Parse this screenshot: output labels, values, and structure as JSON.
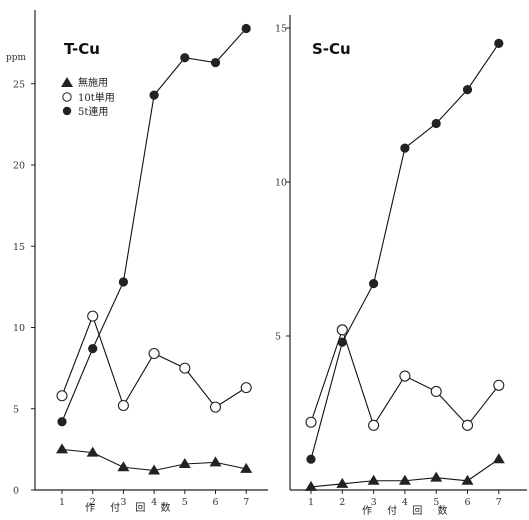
{
  "chart_data": [
    {
      "type": "line",
      "title": "T-Cu",
      "ylabel": "ppm",
      "xlabel": "作 付 回 数",
      "categories": [
        "1",
        "2",
        "3",
        "4",
        "5",
        "6",
        "7"
      ],
      "yticks": [
        "0",
        "5",
        "10",
        "15",
        "20",
        "25"
      ],
      "ylim": [
        0,
        28.5
      ],
      "legend": "top-left",
      "series": [
        {
          "name": "無施用",
          "marker": "triangle",
          "values": [
            2.5,
            2.3,
            1.4,
            1.2,
            1.6,
            1.7,
            1.3
          ]
        },
        {
          "name": "10t単用",
          "marker": "open-circle",
          "values": [
            5.8,
            10.7,
            5.2,
            8.4,
            7.5,
            5.1,
            6.3
          ]
        },
        {
          "name": "5t連用",
          "marker": "filled-circle",
          "values": [
            4.2,
            8.7,
            12.8,
            24.3,
            26.6,
            26.3,
            28.4
          ]
        }
      ]
    },
    {
      "type": "line",
      "title": "S-Cu",
      "xlabel": "作 付 回 数",
      "categories": [
        "1",
        "2",
        "3",
        "4",
        "5",
        "6",
        "7"
      ],
      "yticks": [
        "5",
        "10",
        "15"
      ],
      "ylim": [
        0,
        15.2
      ],
      "series": [
        {
          "name": "無施用",
          "marker": "triangle",
          "values": [
            0.1,
            0.2,
            0.3,
            0.3,
            0.4,
            0.3,
            1.0
          ]
        },
        {
          "name": "10t単用",
          "marker": "open-circle",
          "values": [
            2.2,
            5.2,
            2.1,
            3.7,
            3.2,
            2.1,
            3.4
          ]
        },
        {
          "name": "5t連用",
          "marker": "filled-circle",
          "values": [
            1.0,
            4.8,
            6.7,
            11.1,
            11.9,
            13.0,
            14.5
          ]
        }
      ]
    }
  ]
}
